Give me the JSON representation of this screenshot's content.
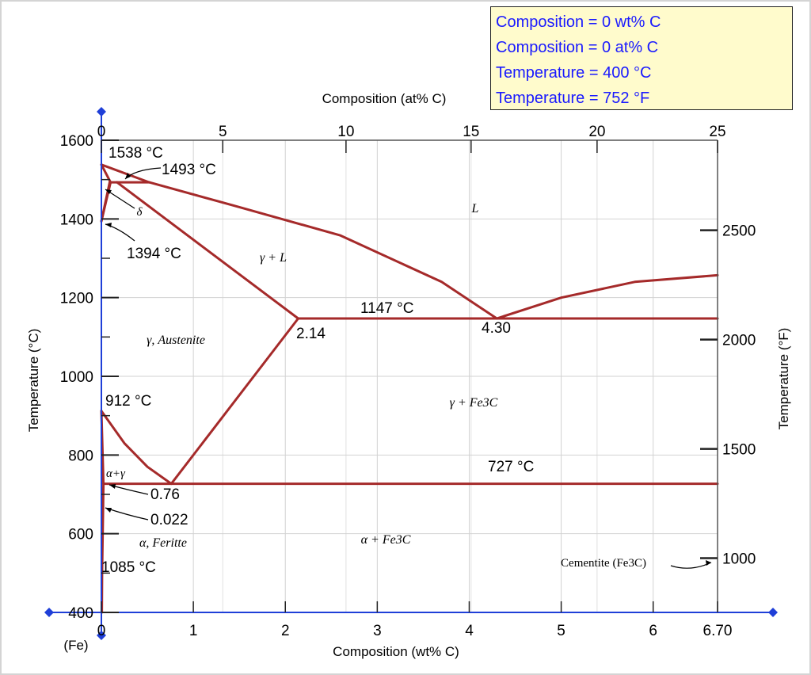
{
  "readout": {
    "lines": [
      "Composition = 0 wt% C",
      "Composition = 0 at% C",
      "Temperature = 400 °C",
      "Temperature = 752 °F"
    ]
  },
  "chart_data": {
    "type": "line",
    "xlabel": "Composition (wt% C)",
    "x2label": "Composition (at% C)",
    "ylabel": "Temperature (°C)",
    "y2label": "Temperature (°F)",
    "xlim": [
      0,
      6.7
    ],
    "ylim": [
      400,
      1600
    ],
    "x_ticks": [
      "0",
      "1",
      "2",
      "3",
      "4",
      "5",
      "6",
      "6.70"
    ],
    "x_tick_values": [
      0,
      1,
      2,
      3,
      4,
      5,
      6,
      6.7
    ],
    "x_origin_label": "(Fe)",
    "y_ticks": [
      "400",
      "600",
      "800",
      "1000",
      "1200",
      "1400",
      "1600"
    ],
    "y_tick_values": [
      400,
      600,
      800,
      1000,
      1200,
      1400,
      1600
    ],
    "x2_ticks": [
      "0",
      "5",
      "10",
      "15",
      "20",
      "25"
    ],
    "x2_tick_values_wt": [
      0,
      1.32,
      2.66,
      4.02,
      5.39,
      6.7
    ],
    "y2_ticks": [
      "1000",
      "1500",
      "2000",
      "2500"
    ],
    "y2_tick_values_c": [
      537.8,
      815.6,
      1093.3,
      1371.1
    ],
    "grid": true,
    "series": [
      {
        "values": [
          [
            0,
            1538
          ],
          [
            0.52,
            1493
          ]
        ]
      },
      {
        "values": [
          [
            0,
            1538
          ],
          [
            0.1,
            1493
          ]
        ]
      },
      {
        "values": [
          [
            0,
            1394
          ],
          [
            0.1,
            1493
          ]
        ]
      },
      {
        "values": [
          [
            0,
            1394
          ],
          [
            0.09,
            1493
          ]
        ]
      },
      {
        "values": [
          [
            0.09,
            1493
          ],
          [
            0.52,
            1493
          ]
        ]
      },
      {
        "values": [
          [
            0.17,
            1493
          ],
          [
            2.14,
            1147
          ]
        ]
      },
      {
        "values": [
          [
            0.52,
            1493
          ],
          [
            1.5,
            1430
          ],
          [
            2.6,
            1358
          ],
          [
            3.7,
            1240
          ],
          [
            4.3,
            1147
          ]
        ]
      },
      {
        "values": [
          [
            4.3,
            1147
          ],
          [
            5.0,
            1200
          ],
          [
            5.8,
            1240
          ],
          [
            6.7,
            1257
          ]
        ]
      },
      {
        "values": [
          [
            2.14,
            1147
          ],
          [
            6.7,
            1147
          ]
        ]
      },
      {
        "values": [
          [
            0.76,
            727
          ],
          [
            2.14,
            1147
          ]
        ]
      },
      {
        "values": [
          [
            0,
            912
          ],
          [
            0.25,
            830
          ],
          [
            0.5,
            770
          ],
          [
            0.76,
            727
          ]
        ]
      },
      {
        "values": [
          [
            0.022,
            727
          ],
          [
            6.7,
            727
          ]
        ]
      },
      {
        "values": [
          [
            0,
            912
          ],
          [
            0.022,
            727
          ]
        ]
      },
      {
        "values": [
          [
            0.022,
            727
          ],
          [
            0.008,
            500
          ],
          [
            0.005,
            400
          ]
        ]
      }
    ],
    "phase_labels": [
      "L",
      "γ + L",
      "γ, Austenite",
      "γ + Fe3C",
      "α+γ",
      "α, Feritte",
      "α + Fe3C",
      "Cementite (Fe3C)",
      "δ"
    ],
    "annotations": [
      "1538 °C",
      "1493 °C",
      "1394 °C",
      "1147 °C",
      "2.14",
      "4.30",
      "912 °C",
      "727 °C",
      "0.76",
      "0.022",
      "1085 °C"
    ],
    "line_color": "#a52a2a",
    "axis_color": "#1f3fd8",
    "marker_color": "#1f3fd8"
  }
}
